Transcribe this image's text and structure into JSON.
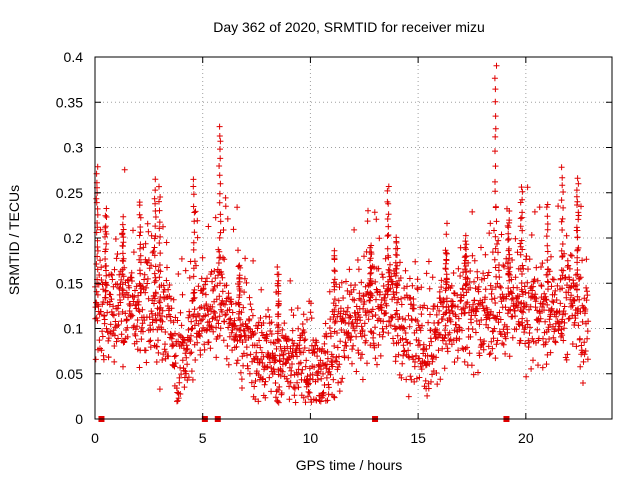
{
  "chart_data": {
    "type": "scatter",
    "title": "Day 362 of 2020, SRMTID for receiver mizu",
    "xlabel": "GPS time / hours",
    "ylabel": "SRMTID / TECUs",
    "xlim": [
      0,
      24
    ],
    "ylim": [
      0,
      0.4
    ],
    "xticks": [
      0,
      5,
      10,
      15,
      20
    ],
    "xtick_labels": [
      "0",
      "5",
      "10",
      "15",
      "20"
    ],
    "yticks": [
      0,
      0.05,
      0.1,
      0.15,
      0.2,
      0.25,
      0.3,
      0.35,
      0.4
    ],
    "ytick_labels": [
      "0",
      "0.05",
      "0.1",
      "0.15",
      "0.2",
      "0.25",
      "0.3",
      "0.35",
      "0.4"
    ],
    "grid": true,
    "marker": "+",
    "color": "#e00000",
    "series": [
      {
        "name": "SRMTID",
        "profile": {
          "x": [
            0.0,
            0.3,
            0.6,
            1.0,
            1.5,
            2.0,
            2.5,
            3.0,
            3.5,
            3.8,
            4.2,
            4.6,
            5.0,
            5.5,
            6.0,
            6.5,
            7.0,
            7.5,
            8.0,
            8.5,
            9.0,
            9.5,
            10.0,
            10.5,
            11.0,
            11.5,
            12.0,
            12.5,
            13.0,
            13.5,
            14.0,
            14.5,
            15.0,
            15.5,
            16.0,
            16.5,
            17.0,
            17.5,
            18.0,
            18.5,
            19.0,
            19.5,
            20.0,
            20.5,
            21.0,
            21.5,
            22.0,
            22.5,
            22.9
          ],
          "y": [
            0.14,
            0.12,
            0.11,
            0.12,
            0.13,
            0.12,
            0.13,
            0.11,
            0.1,
            0.07,
            0.07,
            0.11,
            0.13,
            0.12,
            0.14,
            0.1,
            0.09,
            0.08,
            0.08,
            0.07,
            0.06,
            0.06,
            0.06,
            0.05,
            0.07,
            0.1,
            0.11,
            0.12,
            0.12,
            0.13,
            0.12,
            0.1,
            0.08,
            0.07,
            0.1,
            0.11,
            0.12,
            0.12,
            0.12,
            0.13,
            0.12,
            0.12,
            0.12,
            0.12,
            0.11,
            0.12,
            0.13,
            0.12,
            0.1
          ]
        },
        "peaks": [
          {
            "x": 0.1,
            "y": 0.275
          },
          {
            "x": 0.5,
            "y": 0.23
          },
          {
            "x": 1.3,
            "y": 0.22
          },
          {
            "x": 2.1,
            "y": 0.24
          },
          {
            "x": 2.8,
            "y": 0.262
          },
          {
            "x": 3.0,
            "y": 0.255
          },
          {
            "x": 4.6,
            "y": 0.265
          },
          {
            "x": 5.8,
            "y": 0.325
          },
          {
            "x": 6.7,
            "y": 0.17
          },
          {
            "x": 8.5,
            "y": 0.165
          },
          {
            "x": 11.1,
            "y": 0.185
          },
          {
            "x": 12.8,
            "y": 0.195
          },
          {
            "x": 13.6,
            "y": 0.258
          },
          {
            "x": 14.0,
            "y": 0.2
          },
          {
            "x": 16.3,
            "y": 0.19
          },
          {
            "x": 17.2,
            "y": 0.2
          },
          {
            "x": 18.6,
            "y": 0.393
          },
          {
            "x": 19.2,
            "y": 0.22
          },
          {
            "x": 19.8,
            "y": 0.257
          },
          {
            "x": 21.0,
            "y": 0.24
          },
          {
            "x": 21.7,
            "y": 0.278
          },
          {
            "x": 22.4,
            "y": 0.262
          }
        ],
        "baseline_markers_x": [
          0.3,
          5.1,
          5.7,
          13.0,
          19.1
        ]
      }
    ]
  }
}
